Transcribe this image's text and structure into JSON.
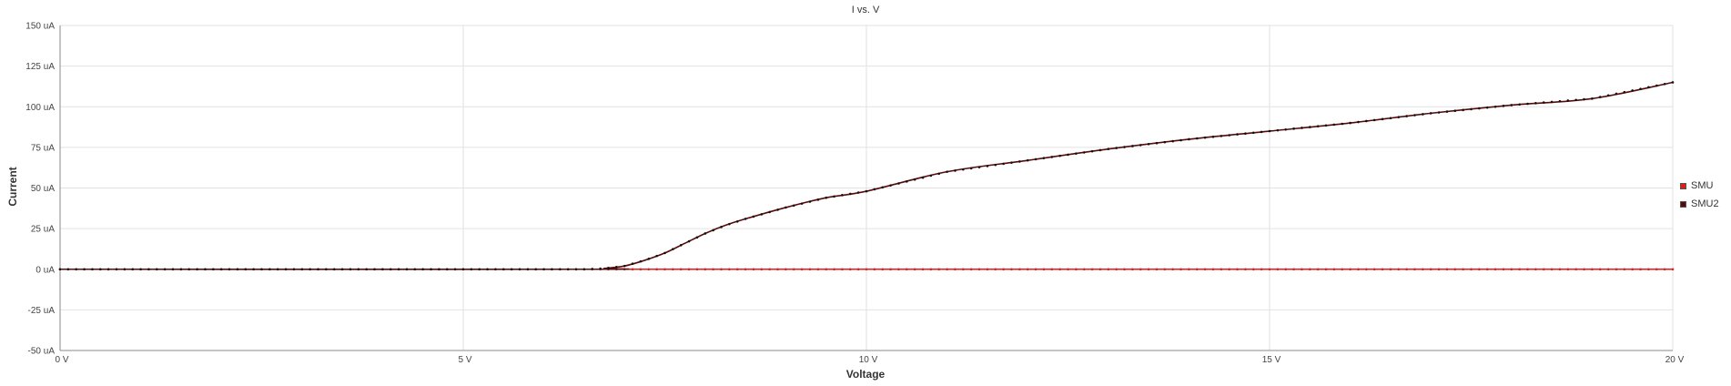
{
  "chart_data": {
    "type": "line",
    "title": "I vs. V",
    "xlabel": "Voltage",
    "ylabel": "Current",
    "xlim": [
      0,
      20
    ],
    "ylim": [
      -50,
      150
    ],
    "x_unit": "V",
    "y_unit": "uA",
    "x_ticks": [
      "0 V",
      "5 V",
      "10 V",
      "15 V",
      "20 V"
    ],
    "x_tick_values": [
      0,
      5,
      10,
      15,
      20
    ],
    "y_ticks": [
      "150 uA",
      "125 uA",
      "100 uA",
      "75 uA",
      "50 uA",
      "25 uA",
      "0 uA",
      "-25 uA",
      "-50 uA"
    ],
    "y_tick_values": [
      150,
      125,
      100,
      75,
      50,
      25,
      0,
      -25,
      -50
    ],
    "grid": true,
    "legend_position": "right",
    "series": [
      {
        "name": "SMU",
        "color": "#e21b1b",
        "marker_color": "#e21b1b",
        "x": [
          0,
          20
        ],
        "y": [
          0,
          0
        ]
      },
      {
        "name": "SMU2",
        "color": "#5a0a0a",
        "marker_color": "#111111",
        "x": [
          0,
          6.5,
          6.75,
          7.0,
          7.25,
          7.5,
          7.75,
          8.0,
          8.25,
          8.5,
          9.0,
          9.5,
          10.0,
          11.0,
          12.0,
          13.0,
          14.0,
          15.0,
          16.0,
          17.0,
          18.0,
          19.0,
          20.0
        ],
        "y": [
          0,
          0,
          0.5,
          2,
          5.5,
          10,
          16,
          22,
          27,
          31,
          38,
          44,
          48,
          60,
          67,
          74,
          80,
          85,
          90,
          96,
          101,
          105,
          115
        ]
      }
    ]
  }
}
